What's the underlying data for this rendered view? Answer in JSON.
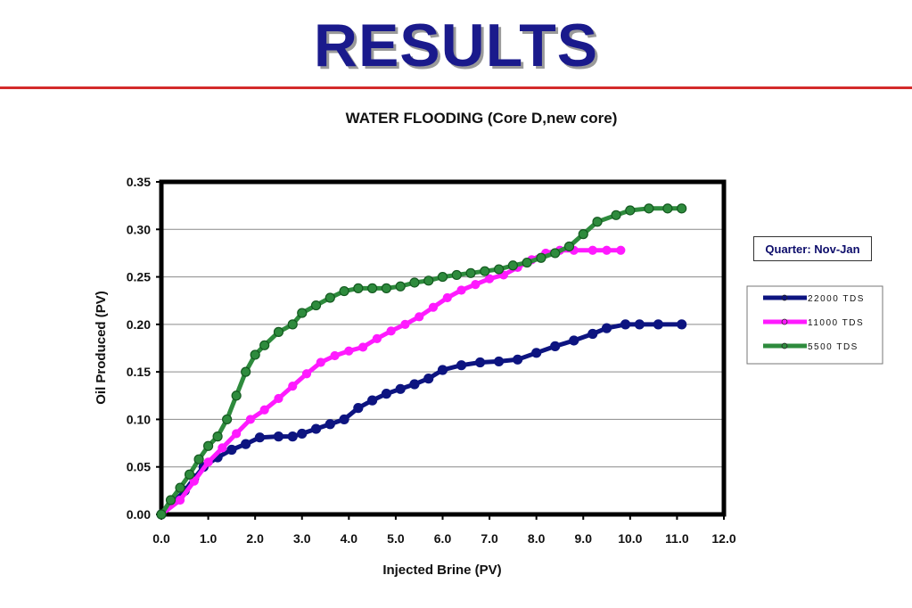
{
  "slide": {
    "title": "RESULTS",
    "accent_rule_color": "#d42a2a"
  },
  "quarter_label": "Quarter: Nov-Jan",
  "chart_data": {
    "type": "line",
    "title": "WATER FLOODING (Core D,new core)",
    "xlabel": "Injected Brine (PV)",
    "ylabel": "Oil Produced (PV)",
    "xlim": [
      0,
      12
    ],
    "ylim": [
      0,
      0.35
    ],
    "x_ticks": [
      "0.0",
      "1.0",
      "2.0",
      "3.0",
      "4.0",
      "5.0",
      "6.0",
      "7.0",
      "8.0",
      "9.0",
      "10.0",
      "11.0",
      "12.0"
    ],
    "y_ticks": [
      "0.00",
      "0.05",
      "0.10",
      "0.15",
      "0.20",
      "0.25",
      "0.30",
      "0.35"
    ],
    "grid": "horizontal",
    "legend_position": "right",
    "series": [
      {
        "name": "22000 TDS",
        "color": "#0d1480",
        "points": [
          [
            0,
            0
          ],
          [
            0.3,
            0.015
          ],
          [
            0.5,
            0.025
          ],
          [
            0.7,
            0.038
          ],
          [
            0.9,
            0.05
          ],
          [
            1.2,
            0.06
          ],
          [
            1.5,
            0.068
          ],
          [
            1.8,
            0.074
          ],
          [
            2.1,
            0.081
          ],
          [
            2.5,
            0.082
          ],
          [
            2.8,
            0.082
          ],
          [
            3.0,
            0.085
          ],
          [
            3.3,
            0.09
          ],
          [
            3.6,
            0.095
          ],
          [
            3.9,
            0.1
          ],
          [
            4.2,
            0.112
          ],
          [
            4.5,
            0.12
          ],
          [
            4.8,
            0.127
          ],
          [
            5.1,
            0.132
          ],
          [
            5.4,
            0.137
          ],
          [
            5.7,
            0.143
          ],
          [
            6.0,
            0.152
          ],
          [
            6.4,
            0.157
          ],
          [
            6.8,
            0.16
          ],
          [
            7.2,
            0.161
          ],
          [
            7.6,
            0.163
          ],
          [
            8.0,
            0.17
          ],
          [
            8.4,
            0.177
          ],
          [
            8.8,
            0.183
          ],
          [
            9.2,
            0.19
          ],
          [
            9.5,
            0.196
          ],
          [
            9.9,
            0.2
          ],
          [
            10.2,
            0.2
          ],
          [
            10.6,
            0.2
          ],
          [
            11.1,
            0.2
          ]
        ]
      },
      {
        "name": "11000 TDS",
        "color": "#ff1aff",
        "points": [
          [
            0,
            0
          ],
          [
            0.4,
            0.015
          ],
          [
            0.7,
            0.035
          ],
          [
            1.0,
            0.055
          ],
          [
            1.3,
            0.07
          ],
          [
            1.6,
            0.085
          ],
          [
            1.9,
            0.1
          ],
          [
            2.2,
            0.11
          ],
          [
            2.5,
            0.122
          ],
          [
            2.8,
            0.135
          ],
          [
            3.1,
            0.148
          ],
          [
            3.4,
            0.16
          ],
          [
            3.7,
            0.167
          ],
          [
            4.0,
            0.172
          ],
          [
            4.3,
            0.176
          ],
          [
            4.6,
            0.185
          ],
          [
            4.9,
            0.193
          ],
          [
            5.2,
            0.2
          ],
          [
            5.5,
            0.208
          ],
          [
            5.8,
            0.218
          ],
          [
            6.1,
            0.228
          ],
          [
            6.4,
            0.236
          ],
          [
            6.7,
            0.242
          ],
          [
            7.0,
            0.248
          ],
          [
            7.3,
            0.252
          ],
          [
            7.6,
            0.26
          ],
          [
            7.9,
            0.268
          ],
          [
            8.2,
            0.275
          ],
          [
            8.5,
            0.278
          ],
          [
            8.8,
            0.278
          ],
          [
            9.2,
            0.278
          ],
          [
            9.5,
            0.278
          ],
          [
            9.8,
            0.278
          ]
        ]
      },
      {
        "name": "5500 TDS",
        "color": "#2e8b3d",
        "points": [
          [
            0,
            0
          ],
          [
            0.2,
            0.015
          ],
          [
            0.4,
            0.028
          ],
          [
            0.6,
            0.042
          ],
          [
            0.8,
            0.058
          ],
          [
            1.0,
            0.072
          ],
          [
            1.2,
            0.082
          ],
          [
            1.4,
            0.1
          ],
          [
            1.6,
            0.125
          ],
          [
            1.8,
            0.15
          ],
          [
            2.0,
            0.168
          ],
          [
            2.2,
            0.178
          ],
          [
            2.5,
            0.192
          ],
          [
            2.8,
            0.2
          ],
          [
            3.0,
            0.212
          ],
          [
            3.3,
            0.22
          ],
          [
            3.6,
            0.228
          ],
          [
            3.9,
            0.235
          ],
          [
            4.2,
            0.238
          ],
          [
            4.5,
            0.238
          ],
          [
            4.8,
            0.238
          ],
          [
            5.1,
            0.24
          ],
          [
            5.4,
            0.244
          ],
          [
            5.7,
            0.246
          ],
          [
            6.0,
            0.25
          ],
          [
            6.3,
            0.252
          ],
          [
            6.6,
            0.254
          ],
          [
            6.9,
            0.256
          ],
          [
            7.2,
            0.258
          ],
          [
            7.5,
            0.262
          ],
          [
            7.8,
            0.265
          ],
          [
            8.1,
            0.27
          ],
          [
            8.4,
            0.275
          ],
          [
            8.7,
            0.282
          ],
          [
            9.0,
            0.295
          ],
          [
            9.3,
            0.308
          ],
          [
            9.7,
            0.315
          ],
          [
            10.0,
            0.32
          ],
          [
            10.4,
            0.322
          ],
          [
            10.8,
            0.322
          ],
          [
            11.1,
            0.322
          ]
        ]
      }
    ]
  }
}
